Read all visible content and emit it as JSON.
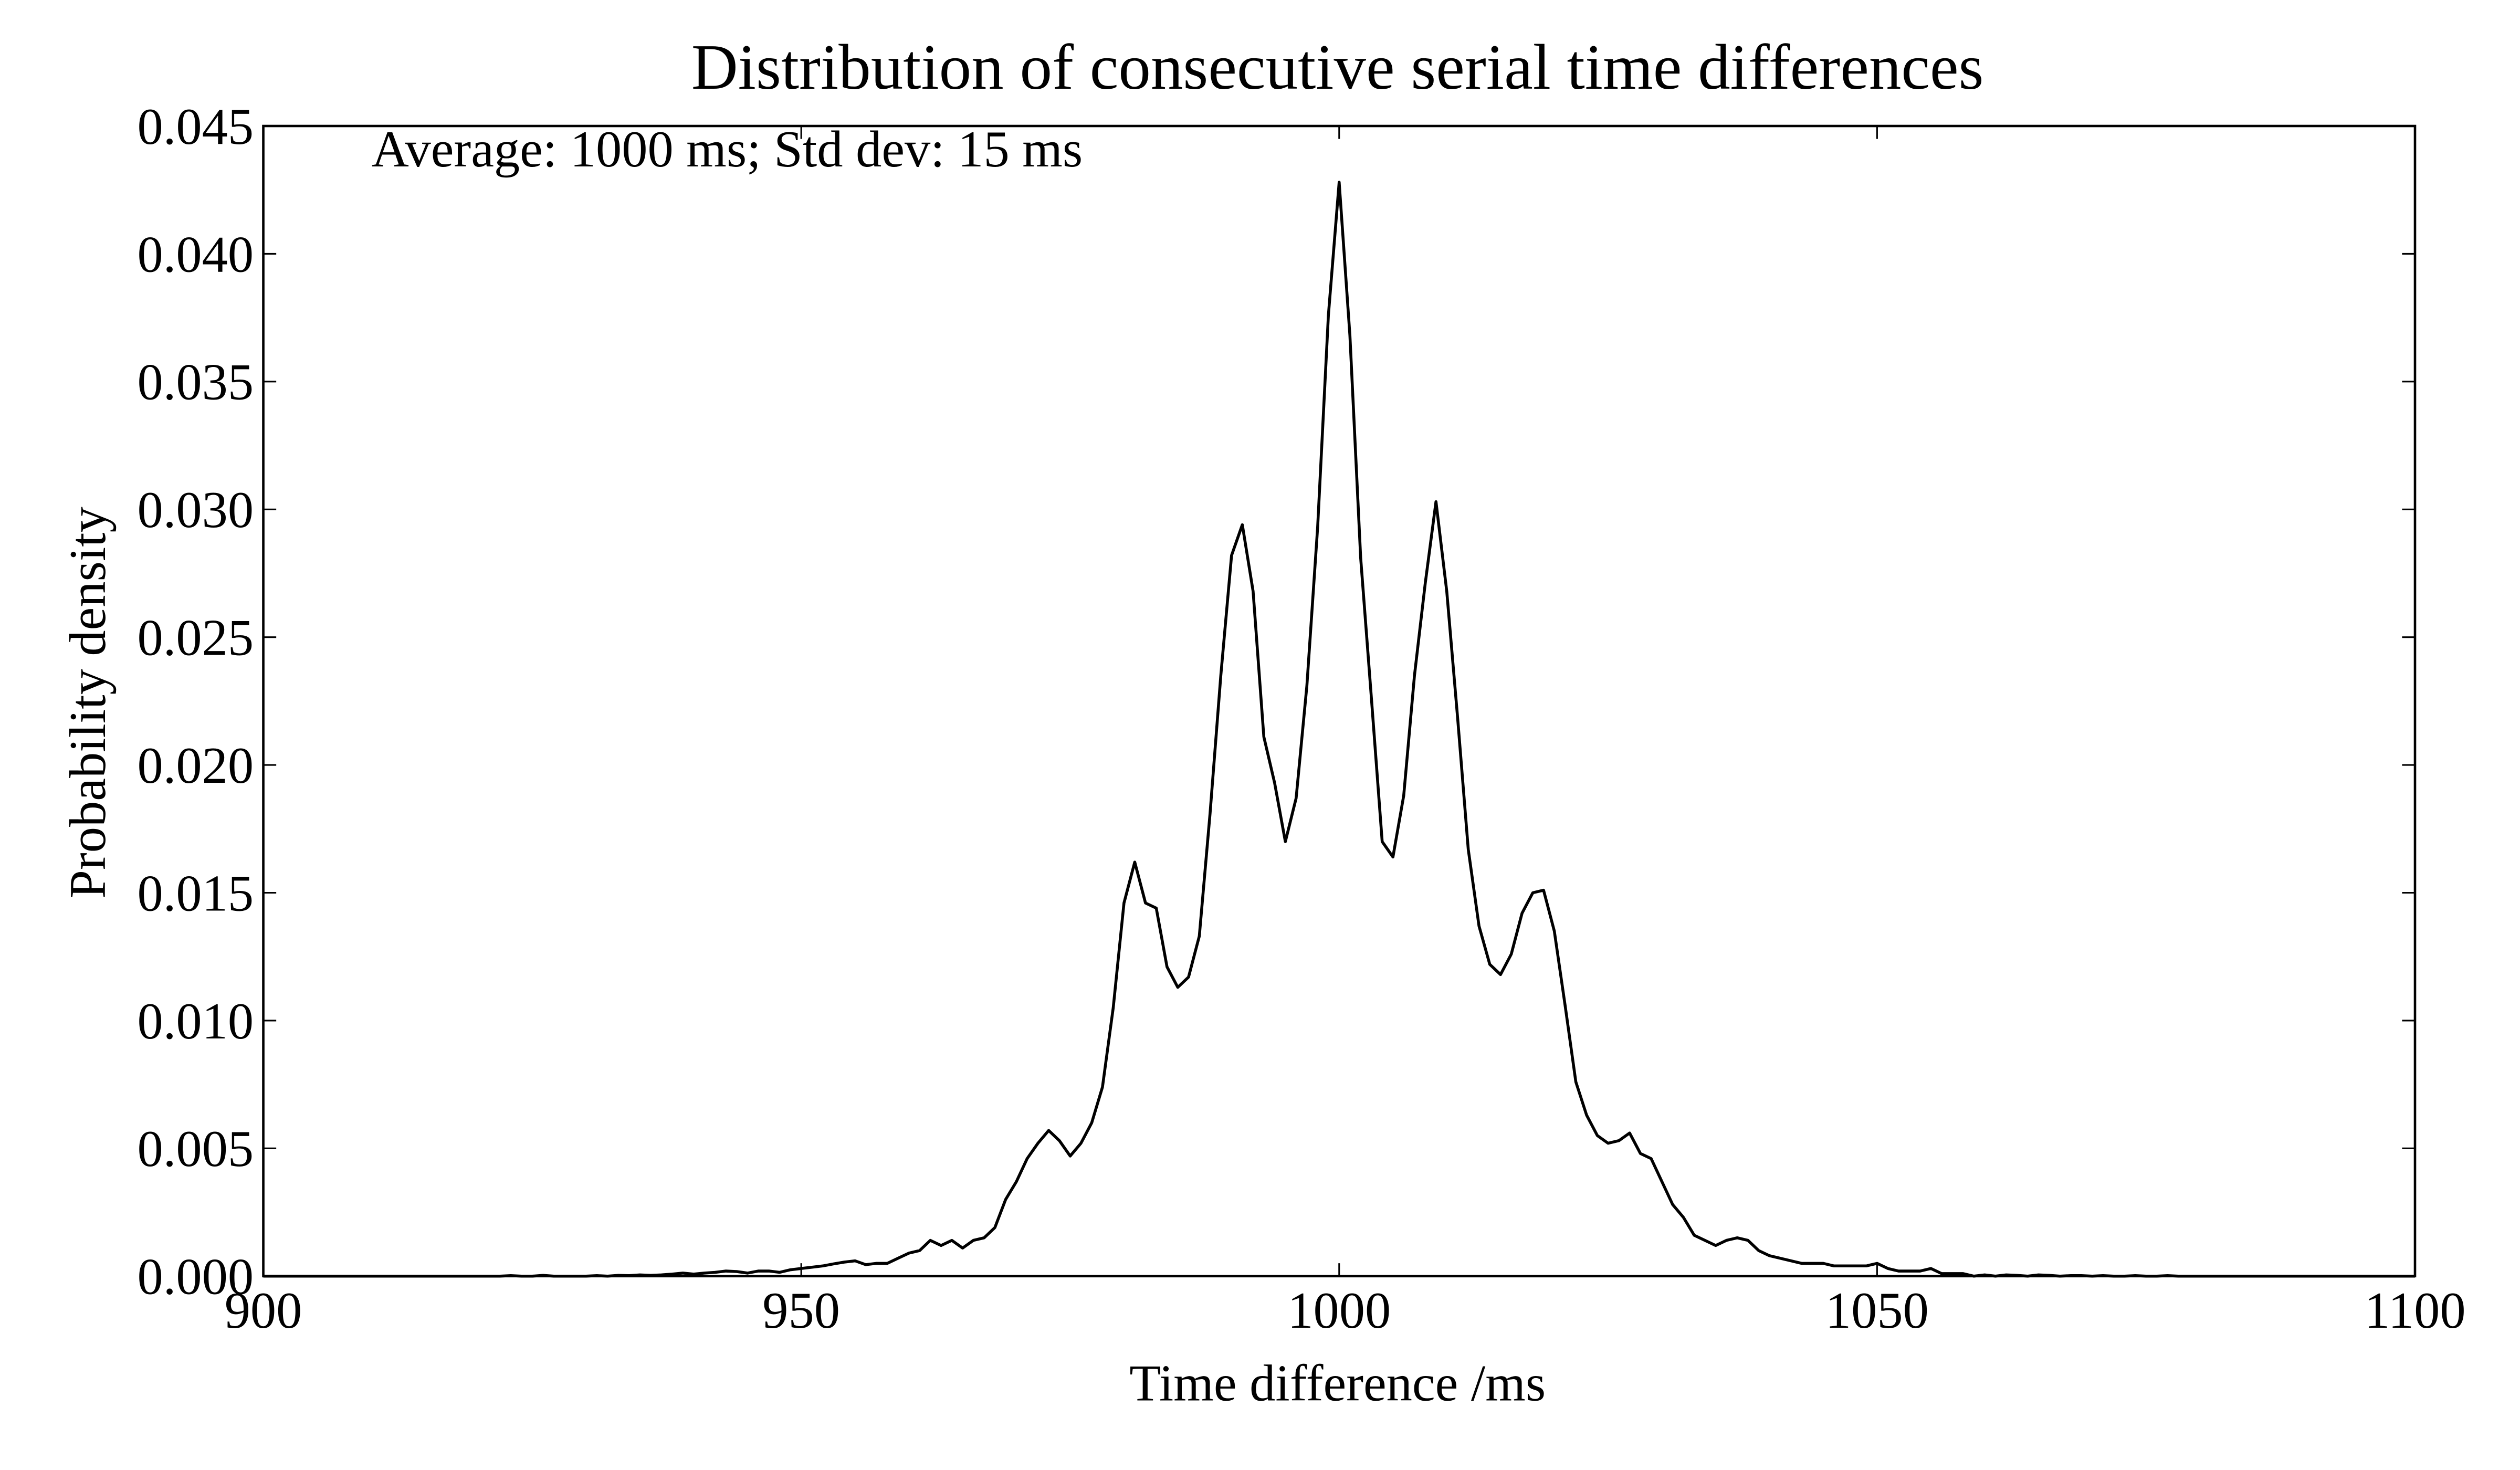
{
  "chart_data": {
    "type": "line",
    "title": "Distribution of consecutive serial time differences",
    "annotation": "Average: 1000 ms; Std dev: 15 ms",
    "xlabel": "Time difference /ms",
    "ylabel": "Probability density",
    "color": "#000000",
    "x": [
      900,
      901,
      902,
      903,
      904,
      905,
      906,
      907,
      908,
      909,
      910,
      911,
      912,
      913,
      914,
      915,
      916,
      917,
      918,
      919,
      920,
      921,
      922,
      923,
      924,
      925,
      926,
      927,
      928,
      929,
      930,
      931,
      932,
      933,
      934,
      935,
      936,
      937,
      938,
      939,
      940,
      941,
      942,
      943,
      944,
      945,
      946,
      947,
      948,
      949,
      950,
      951,
      952,
      953,
      954,
      955,
      956,
      957,
      958,
      959,
      960,
      961,
      962,
      963,
      964,
      965,
      966,
      967,
      968,
      969,
      970,
      971,
      972,
      973,
      974,
      975,
      976,
      977,
      978,
      979,
      980,
      981,
      982,
      983,
      984,
      985,
      986,
      987,
      988,
      989,
      990,
      991,
      992,
      993,
      994,
      995,
      996,
      997,
      998,
      999,
      1000,
      1001,
      1002,
      1003,
      1004,
      1005,
      1006,
      1007,
      1008,
      1009,
      1010,
      1011,
      1012,
      1013,
      1014,
      1015,
      1016,
      1017,
      1018,
      1019,
      1020,
      1021,
      1022,
      1023,
      1024,
      1025,
      1026,
      1027,
      1028,
      1029,
      1030,
      1031,
      1032,
      1033,
      1034,
      1035,
      1036,
      1037,
      1038,
      1039,
      1040,
      1041,
      1042,
      1043,
      1044,
      1045,
      1046,
      1047,
      1048,
      1049,
      1050,
      1051,
      1052,
      1053,
      1054,
      1055,
      1056,
      1057,
      1058,
      1059,
      1060,
      1061,
      1062,
      1063,
      1064,
      1065,
      1066,
      1067,
      1068,
      1069,
      1070,
      1071,
      1072,
      1073,
      1074,
      1075,
      1076,
      1077,
      1078,
      1079,
      1080,
      1081,
      1082,
      1083,
      1084,
      1085,
      1086,
      1087,
      1088,
      1089,
      1090,
      1091,
      1092,
      1093,
      1094,
      1095,
      1096,
      1097,
      1098,
      1099,
      1100
    ],
    "values": [
      0,
      0,
      0,
      0,
      0,
      0,
      0,
      0,
      0,
      0,
      0,
      0,
      0,
      0,
      0,
      0,
      0,
      0,
      0,
      0,
      0,
      0,
      0,
      2e-05,
      0,
      0,
      3e-05,
      0,
      0,
      0,
      0,
      2e-05,
      0,
      3e-05,
      2e-05,
      5e-05,
      3e-05,
      5e-05,
      8e-05,
      0.00012,
      8e-05,
      0.00012,
      0.00015,
      0.0002,
      0.00018,
      0.00012,
      0.0002,
      0.0002,
      0.00015,
      0.00025,
      0.0003,
      0.00035,
      0.0004,
      0.00048,
      0.00055,
      0.0006,
      0.00045,
      0.0005,
      0.0005,
      0.0007,
      0.0009,
      0.001,
      0.0014,
      0.0012,
      0.0014,
      0.0011,
      0.0014,
      0.0015,
      0.0019,
      0.003,
      0.0037,
      0.0046,
      0.0052,
      0.0057,
      0.0053,
      0.0047,
      0.0052,
      0.006,
      0.0074,
      0.0105,
      0.0146,
      0.0162,
      0.0146,
      0.0144,
      0.0121,
      0.0113,
      0.0117,
      0.0133,
      0.0181,
      0.0235,
      0.0282,
      0.0294,
      0.0268,
      0.0211,
      0.0193,
      0.017,
      0.0187,
      0.0231,
      0.0293,
      0.0376,
      0.0428,
      0.0368,
      0.0281,
      0.0226,
      0.017,
      0.0164,
      0.0188,
      0.0235,
      0.0271,
      0.0303,
      0.0268,
      0.0219,
      0.0167,
      0.0137,
      0.0122,
      0.0118,
      0.0126,
      0.0142,
      0.015,
      0.0151,
      0.0135,
      0.0106,
      0.0076,
      0.0063,
      0.0055,
      0.0052,
      0.0053,
      0.0056,
      0.0048,
      0.0046,
      0.0037,
      0.0028,
      0.0023,
      0.0016,
      0.0014,
      0.0012,
      0.0014,
      0.0015,
      0.0014,
      0.001,
      0.0008,
      0.0007,
      0.0006,
      0.0005,
      0.0005,
      0.0005,
      0.0004,
      0.0004,
      0.0004,
      0.0004,
      0.0005,
      0.0003,
      0.0002,
      0.0002,
      0.0002,
      0.0003,
      0.0001,
      0.0001,
      0.0001,
      0,
      5e-05,
      0,
      5e-05,
      3e-05,
      0,
      5e-05,
      3e-05,
      0,
      2e-05,
      2e-05,
      0,
      2e-05,
      0,
      0,
      2e-05,
      0,
      0,
      2e-05,
      0,
      0,
      0,
      0,
      0,
      0,
      0,
      0,
      0,
      0,
      0,
      0,
      0,
      0,
      0,
      0,
      0,
      0,
      0,
      0,
      0,
      0,
      0
    ],
    "xlim": [
      900,
      1100
    ],
    "ylim": [
      0,
      0.045
    ],
    "xticks": [
      900,
      950,
      1000,
      1050,
      1100
    ],
    "yticks": [
      {
        "value": 0,
        "label": "0.000"
      },
      0.005,
      {
        "value": 0.01,
        "label": "0.010"
      },
      0.015,
      {
        "value": 0.02,
        "label": "0.020"
      },
      0.025,
      {
        "value": 0.03,
        "label": "0.030"
      },
      0.035,
      {
        "value": 0.04,
        "label": "0.040"
      },
      0.045
    ]
  }
}
